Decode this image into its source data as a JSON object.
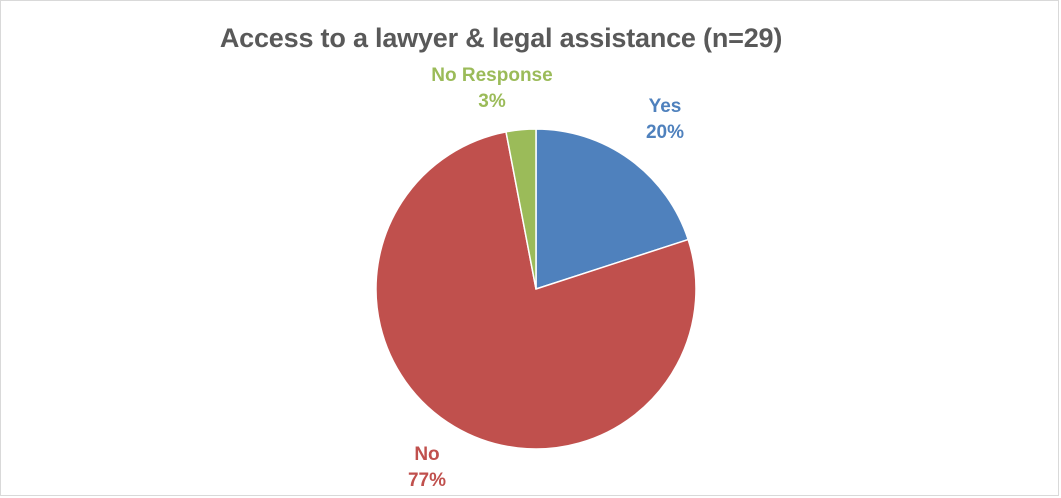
{
  "chart_data": {
    "type": "pie",
    "title": "Access to a lawyer & legal assistance (n=29)",
    "slices": [
      {
        "name": "Yes",
        "value": 20,
        "label": "20%",
        "color": "#4f81bd"
      },
      {
        "name": "No",
        "value": 77,
        "label": "77%",
        "color": "#c0504d"
      },
      {
        "name": "No Response",
        "value": 3,
        "label": "3%",
        "color": "#9bbb59"
      }
    ],
    "start": "12 o'clock",
    "direction": "clockwise",
    "data_labels": "category name and percentage"
  }
}
